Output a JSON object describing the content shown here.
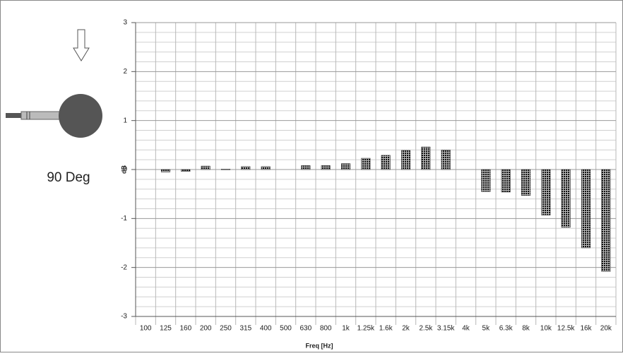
{
  "chart_data": {
    "type": "bar",
    "annotation": "90 Deg",
    "xlabel": "Freq [Hz]",
    "ylabel": "dB",
    "categories": [
      "100",
      "125",
      "160",
      "200",
      "250",
      "315",
      "400",
      "500",
      "630",
      "800",
      "1k",
      "1.25k",
      "1.6k",
      "2k",
      "2.5k",
      "3.15k",
      "4k",
      "5k",
      "6.3k",
      "8k",
      "10k",
      "12.5k",
      "16k",
      "20k"
    ],
    "values": [
      null,
      -0.05,
      -0.04,
      0.07,
      0.01,
      0.06,
      0.06,
      null,
      0.08,
      0.08,
      0.12,
      0.23,
      0.29,
      0.39,
      0.46,
      0.4,
      null,
      -0.45,
      -0.46,
      -0.53,
      -0.93,
      -1.18,
      -1.6,
      -2.08
    ],
    "color": "#333333",
    "ylim": [
      -3,
      3
    ],
    "yticks": [
      -3,
      -2,
      -1,
      0,
      1,
      2,
      3
    ],
    "minor_yticks": [
      -2.8,
      -2.6,
      -2.4,
      -2.2,
      -1.8,
      -1.6,
      -1.4,
      -1.2,
      -0.8,
      -0.6,
      -0.4,
      -0.2,
      0.2,
      0.4,
      0.6,
      0.8,
      1.2,
      1.4,
      1.6,
      1.8,
      2.2,
      2.4,
      2.6,
      2.8
    ],
    "grid": true
  }
}
